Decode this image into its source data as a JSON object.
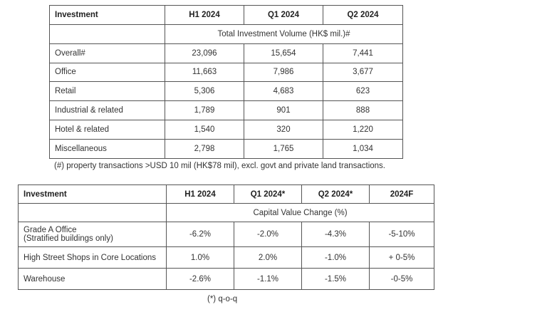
{
  "table1": {
    "headers": [
      "Investment",
      "H1 2024",
      "Q1 2024",
      "Q2 2024"
    ],
    "subheader": "Total Investment Volume (HK$ mil.)#",
    "rows": [
      {
        "label": "Overall#",
        "values": [
          "23,096",
          "15,654",
          "7,441"
        ]
      },
      {
        "label": "Office",
        "values": [
          "11,663",
          "7,986",
          "3,677"
        ]
      },
      {
        "label": "Retail",
        "values": [
          "5,306",
          "4,683",
          "623"
        ]
      },
      {
        "label": "Industrial & related",
        "values": [
          "1,789",
          "901",
          "888"
        ]
      },
      {
        "label": "Hotel & related",
        "values": [
          "1,540",
          "320",
          "1,220"
        ]
      },
      {
        "label": "Miscellaneous",
        "values": [
          "2,798",
          "1,765",
          "1,034"
        ]
      }
    ],
    "footnote": "(#) property transactions >USD 10 mil (HK$78 mil), excl. govt and private land transactions."
  },
  "table2": {
    "headers": [
      "Investment",
      "H1 2024",
      "Q1 2024*",
      "Q2 2024*",
      "2024F"
    ],
    "subheader": "Capital Value Change (%)",
    "rows": [
      {
        "label": "Grade A Office",
        "label2": "(Stratified buildings only)",
        "values": [
          "-6.2%",
          "-2.0%",
          "-4.3%",
          "-5-10%"
        ]
      },
      {
        "label": "High Street Shops in Core Locations",
        "values": [
          "1.0%",
          "2.0%",
          "-1.0%",
          "+ 0-5%"
        ]
      },
      {
        "label": "Warehouse",
        "values": [
          "-2.6%",
          "-1.1%",
          "-1.5%",
          "-0-5%"
        ]
      }
    ],
    "footnote": "(*) q-o-q"
  }
}
